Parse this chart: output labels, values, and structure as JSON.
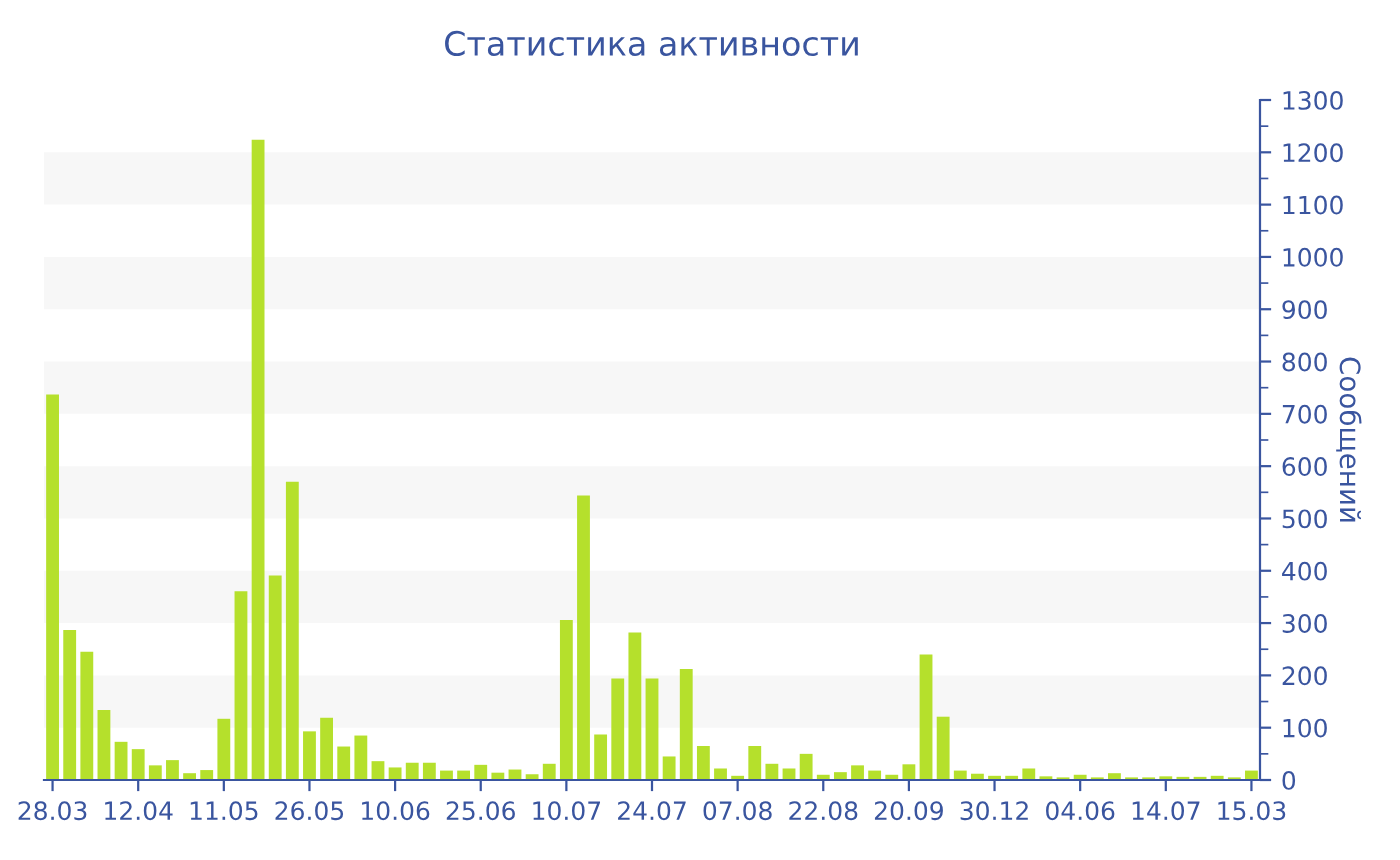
{
  "chart_data": {
    "type": "bar",
    "title": "Статистика активности",
    "ylabel": "Сообщений",
    "categories": [
      "28.03",
      null,
      null,
      null,
      null,
      "12.04",
      null,
      null,
      null,
      null,
      "11.05",
      null,
      null,
      null,
      null,
      "26.05",
      null,
      null,
      null,
      null,
      "10.06",
      null,
      null,
      null,
      null,
      "25.06",
      null,
      null,
      null,
      null,
      "10.07",
      null,
      null,
      null,
      null,
      "24.07",
      null,
      null,
      null,
      null,
      "07.08",
      null,
      null,
      null,
      null,
      "22.08",
      null,
      null,
      null,
      null,
      "20.09",
      null,
      null,
      null,
      null,
      "30.12",
      null,
      null,
      null,
      null,
      "04.06",
      null,
      null,
      null,
      null,
      "14.07",
      null,
      null,
      null,
      null,
      "15.03"
    ],
    "values": [
      737,
      287,
      245,
      134,
      73,
      59,
      28,
      38,
      13,
      19,
      117,
      361,
      1224,
      391,
      570,
      93,
      119,
      64,
      85,
      36,
      24,
      33,
      33,
      18,
      18,
      29,
      14,
      20,
      11,
      31,
      306,
      544,
      87,
      194,
      282,
      194,
      45,
      212,
      65,
      22,
      8,
      65,
      31,
      22,
      50,
      10,
      15,
      28,
      18,
      10,
      30,
      240,
      121,
      18,
      12,
      8,
      8,
      22,
      7,
      5,
      10,
      5,
      13,
      5,
      5,
      7,
      6,
      6,
      8,
      5,
      18
    ],
    "color": "#b5e02c",
    "ylim": [
      0,
      1300
    ],
    "yticks": [
      0,
      100,
      200,
      300,
      400,
      500,
      600,
      700,
      800,
      900,
      1000,
      1100,
      1200,
      1300
    ]
  }
}
